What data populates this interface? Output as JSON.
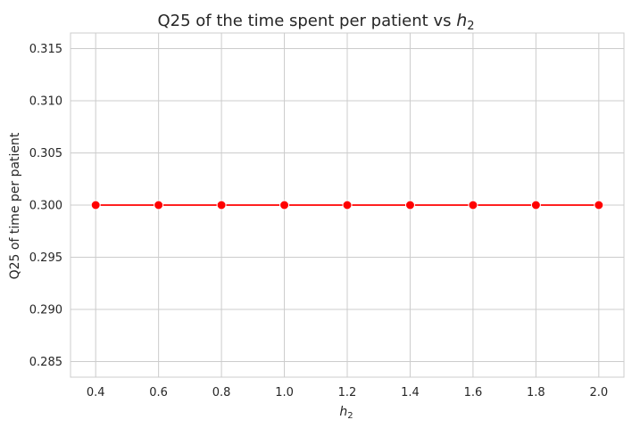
{
  "chart_data": {
    "type": "line",
    "title": {
      "text": "Q25 of the time spent per patient vs ",
      "var": "h",
      "sub": "2"
    },
    "xlabel": {
      "var": "h",
      "sub": "2"
    },
    "ylabel": "Q25 of time per patient",
    "x": [
      0.4,
      0.6,
      0.8,
      1.0,
      1.2,
      1.4,
      1.6,
      1.8,
      2.0
    ],
    "series": [
      {
        "values": [
          0.3,
          0.3,
          0.3,
          0.3,
          0.3,
          0.3,
          0.3,
          0.3,
          0.3
        ],
        "color": "#ff0000",
        "marker": "circle"
      }
    ],
    "xticks": [
      "0.4",
      "0.6",
      "0.8",
      "1.0",
      "1.2",
      "1.4",
      "1.6",
      "1.8",
      "2.0"
    ],
    "yticks": [
      "0.285",
      "0.290",
      "0.295",
      "0.300",
      "0.305",
      "0.310",
      "0.315"
    ],
    "xlim": [
      0.32,
      2.08
    ],
    "ylim": [
      0.2835,
      0.3165
    ],
    "grid": true,
    "grid_color": "#cccccc",
    "style": "whitegrid"
  }
}
